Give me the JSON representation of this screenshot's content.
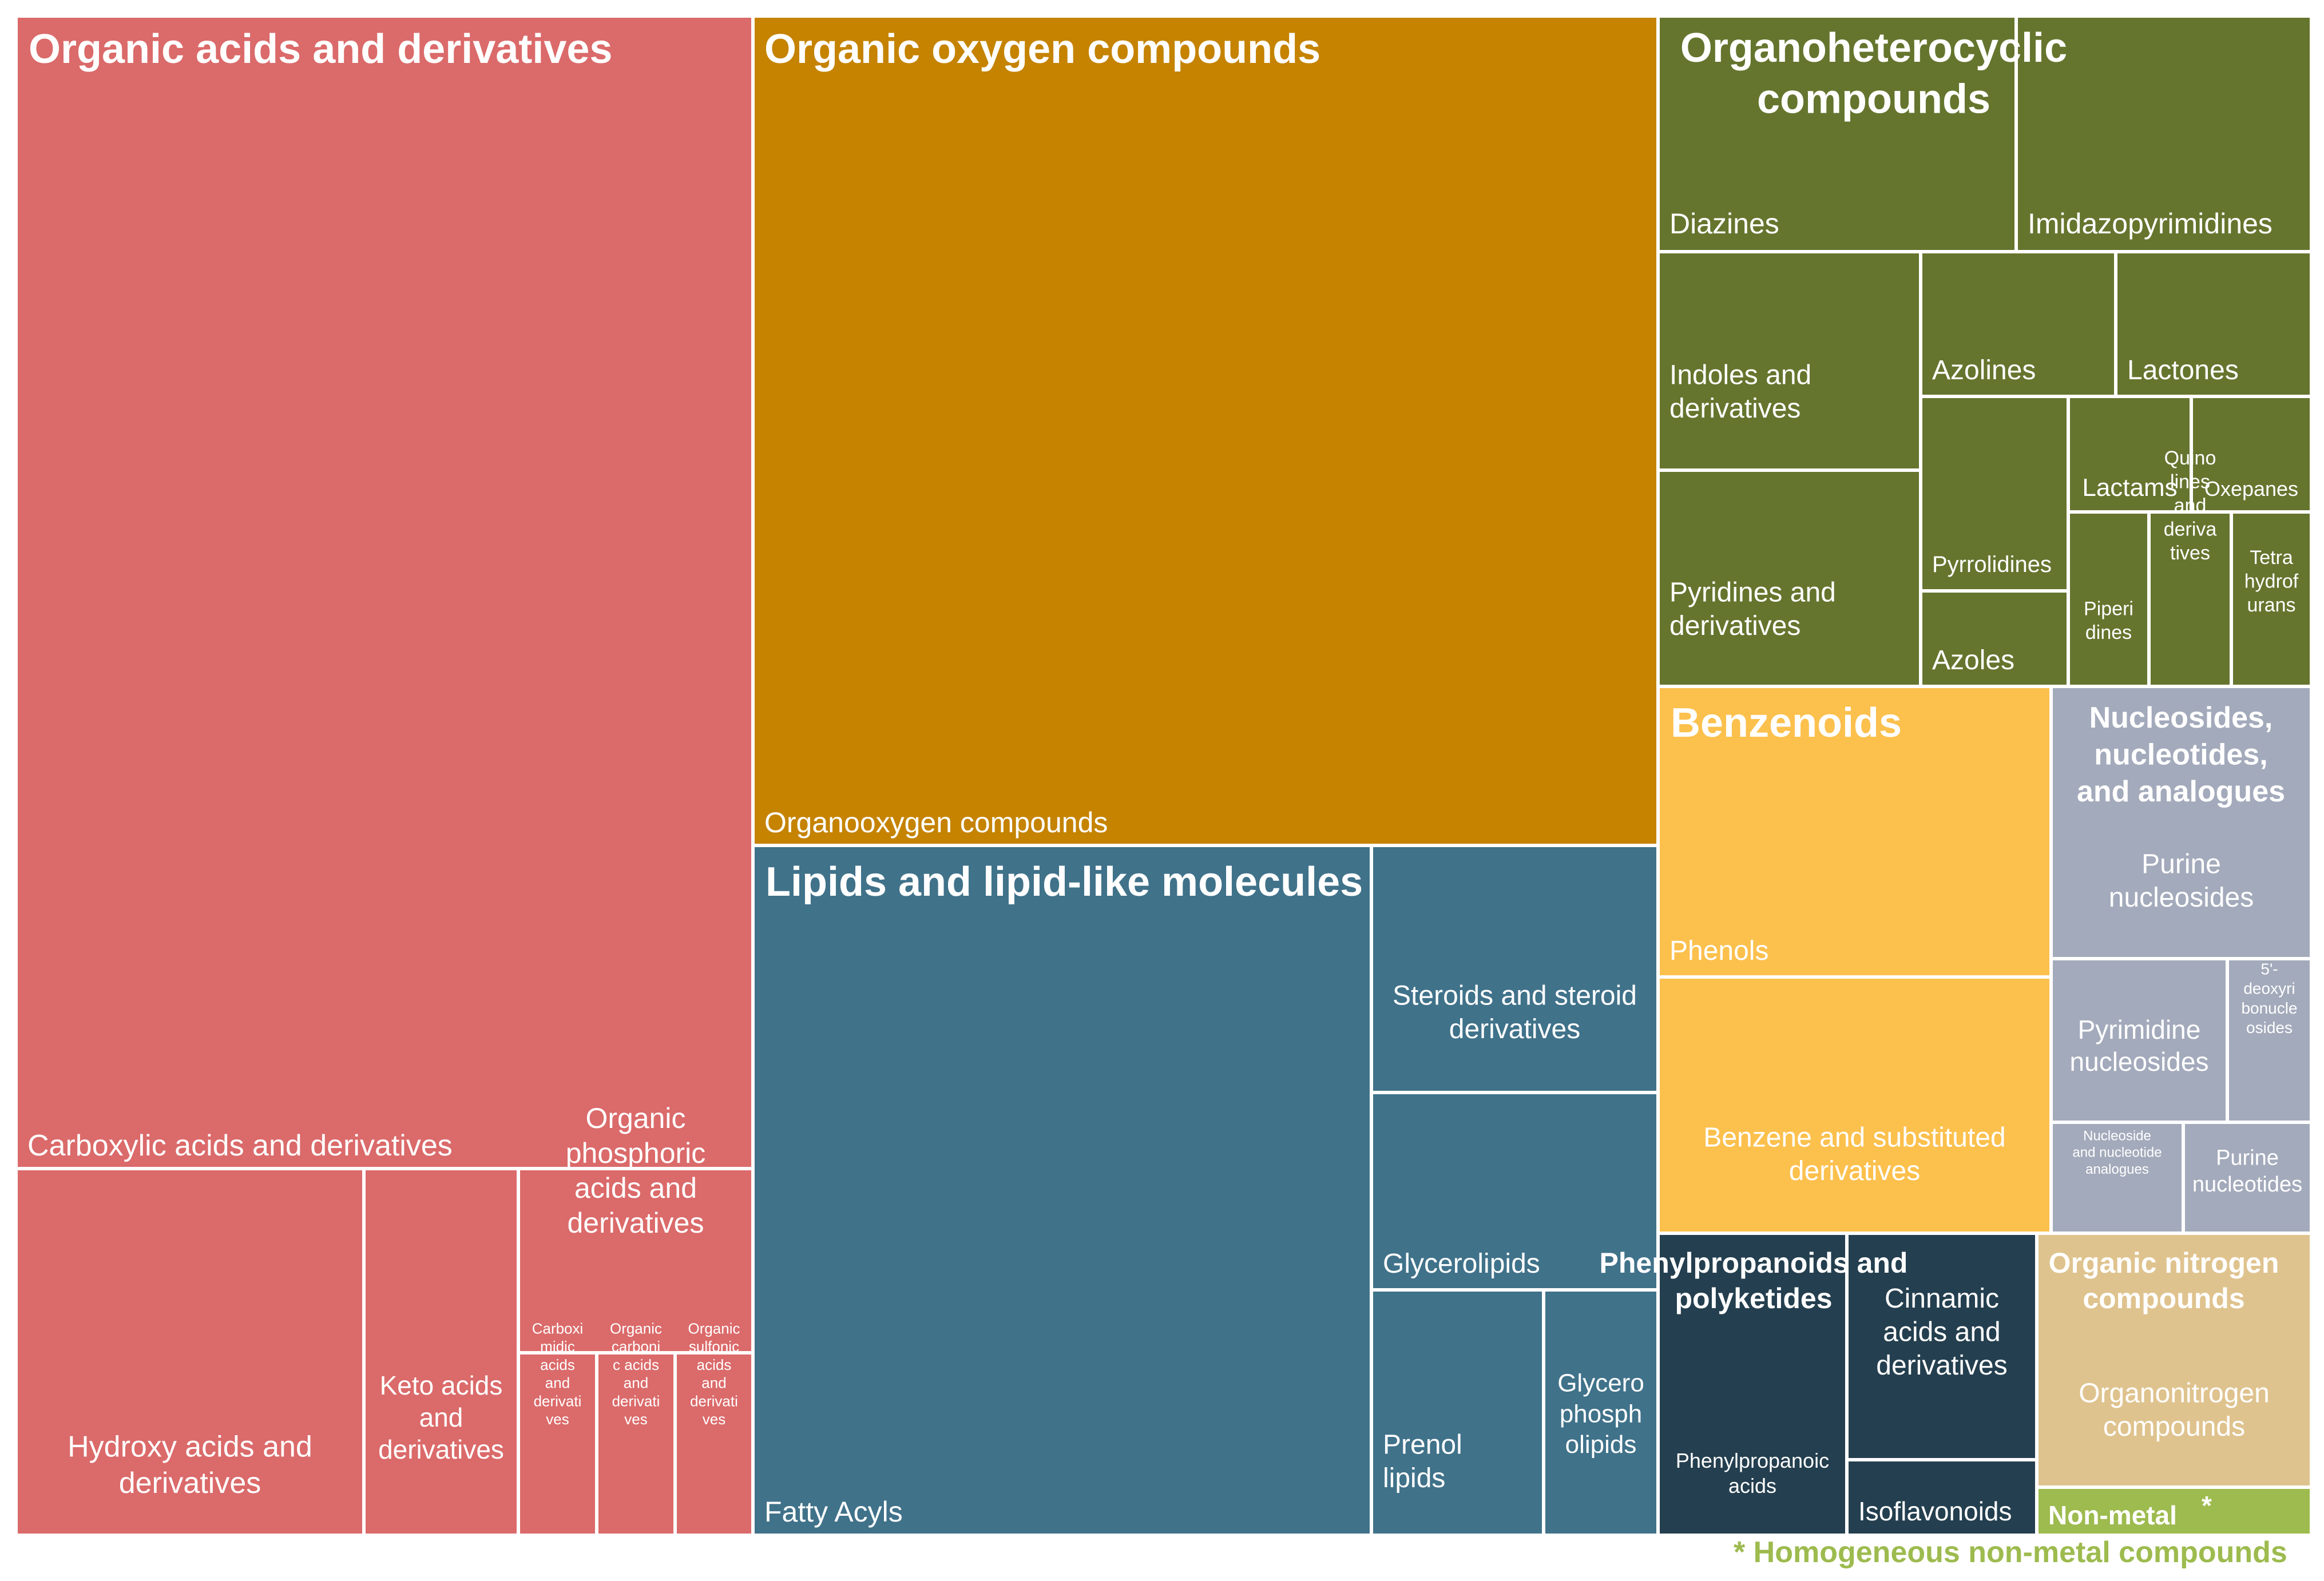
{
  "chart_data": {
    "type": "treemap",
    "title": "",
    "colors": {
      "organic_acids": "#db6a6a",
      "organic_oxygen": "#c58300",
      "lipids": "#40728a",
      "organoheterocyclic": "#65752e",
      "benzenoids": "#fcc04d",
      "nucleosides": "#a3aabb",
      "phenylpropanoids": "#243f4f",
      "organic_nitrogen": "#dfc38e",
      "non_metal": "#9dbb4e",
      "border": "#ffffff",
      "label": "#ffffff"
    },
    "groups": [
      {
        "name": "Organic acids and derivatives",
        "color_key": "organic_acids",
        "children": [
          "Carboxylic acids and derivatives",
          "Hydroxy acids and derivatives",
          "Keto acids and derivatives",
          "Organic phosphoric acids and derivatives",
          "Carboximidic acids and derivatives",
          "Organic carbonic acids and derivatives",
          "Organic sulfonic acids and derivatives"
        ]
      },
      {
        "name": "Organic oxygen compounds",
        "color_key": "organic_oxygen",
        "children": [
          "Organooxygen compounds"
        ]
      },
      {
        "name": "Lipids and lipid-like molecules",
        "color_key": "lipids",
        "children": [
          "Fatty Acyls",
          "Steroids and steroid derivatives",
          "Glycerolipids",
          "Prenol lipids",
          "Glycerophospholipids"
        ]
      },
      {
        "name": "Organoheterocyclic compounds",
        "color_key": "organoheterocyclic",
        "children": [
          "Diazines",
          "Imidazopyrimidines",
          "Indoles and derivatives",
          "Azolines",
          "Lactones",
          "Pyridines and derivatives",
          "Pyrrolidines",
          "Lactams",
          "Oxepanes",
          "Azoles",
          "Piperidines",
          "Quinolines and derivatives",
          "Tetrahydrofurans"
        ]
      },
      {
        "name": "Benzenoids",
        "color_key": "benzenoids",
        "children": [
          "Phenols",
          "Benzene and substituted derivatives"
        ]
      },
      {
        "name": "Nucleosides, nucleotides, and analogues",
        "color_key": "nucleosides",
        "children": [
          "Purine nucleosides",
          "Pyrimidine nucleosides",
          "5'-deoxyribonucleosides",
          "Nucleoside and nucleotide analogues",
          "Purine nucleotides"
        ]
      },
      {
        "name": "Phenylpropanoids and polyketides",
        "color_key": "phenylpropanoids",
        "children": [
          "Phenylpropanoic acids",
          "Cinnamic acids and derivatives",
          "Isoflavonoids"
        ]
      },
      {
        "name": "Organic nitrogen compounds",
        "color_key": "organic_nitrogen",
        "children": [
          "Organonitrogen compounds"
        ]
      },
      {
        "name": "Non-metal",
        "color_key": "non_metal",
        "children": []
      }
    ],
    "group_labels": [
      [
        "Organic acids and derivatives"
      ],
      [
        "Organic oxygen compounds"
      ],
      [
        "Lipids and lipid-like molecules"
      ],
      [
        "Organoheterocyclic",
        "compounds"
      ],
      [
        "Benzenoids"
      ],
      [
        "Nucleosides,",
        "nucleotides,",
        "and analogues"
      ],
      [
        "Phenylpropanoids and",
        "polyketides"
      ],
      [
        "Organic nitrogen",
        "compounds"
      ],
      [
        "Non-metal"
      ]
    ],
    "non_metal_marker": "*",
    "cell_labels": [
      [
        "Carboxylic acids and derivatives"
      ],
      [
        "Hydroxy acids and",
        "derivatives"
      ],
      [
        "Keto acids",
        "and",
        "derivatives"
      ],
      [
        "Organic",
        "phosphoric",
        "acids and",
        "derivatives"
      ],
      [
        "Carboxi",
        "midic",
        "acids",
        "and",
        "derivati",
        "ves"
      ],
      [
        "Organic",
        "carboni",
        "c acids",
        "and",
        "derivati",
        "ves"
      ],
      [
        "Organic",
        "sulfonic",
        "acids",
        "and",
        "derivati",
        "ves"
      ],
      [
        "Organooxygen compounds"
      ],
      [
        "Fatty Acyls"
      ],
      [
        "Steroids and steroid",
        "derivatives"
      ],
      [
        "Glycerolipids"
      ],
      [
        "Prenol",
        "lipids"
      ],
      [
        "Glycero",
        "phosph",
        "olipids"
      ],
      [
        "Diazines"
      ],
      [
        "Imidazopyrimidines"
      ],
      [
        "Indoles and",
        "derivatives"
      ],
      [
        "Azolines"
      ],
      [
        "Lactones"
      ],
      [
        "Pyridines and",
        "derivatives"
      ],
      [
        "Pyrrolidines"
      ],
      [
        "Lactams"
      ],
      [
        "Oxepanes"
      ],
      [
        "Azoles"
      ],
      [
        "Piperi",
        "dines"
      ],
      [
        "Quino",
        "lines",
        "and",
        "deriva",
        "tives"
      ],
      [
        "Tetra",
        "hydrof",
        "urans"
      ],
      [
        "Phenols"
      ],
      [
        "Benzene and substituted",
        "derivatives"
      ],
      [
        "Purine",
        "nucleosides"
      ],
      [
        "Pyrimidine",
        "nucleosides"
      ],
      [
        "5'-",
        "deoxyri",
        "bonucle",
        "osides"
      ],
      [
        "Nucleoside",
        "and nucleotide",
        "analogues"
      ],
      [
        "Purine",
        "nucleotides"
      ],
      [
        "Phenylpropanoic",
        "acids"
      ],
      [
        "Cinnamic",
        "acids and",
        "derivatives"
      ],
      [
        "Isoflavonoids"
      ],
      [
        "Organonitrogen",
        "compounds"
      ]
    ],
    "footnote": "* Homogeneous non-metal compounds"
  }
}
